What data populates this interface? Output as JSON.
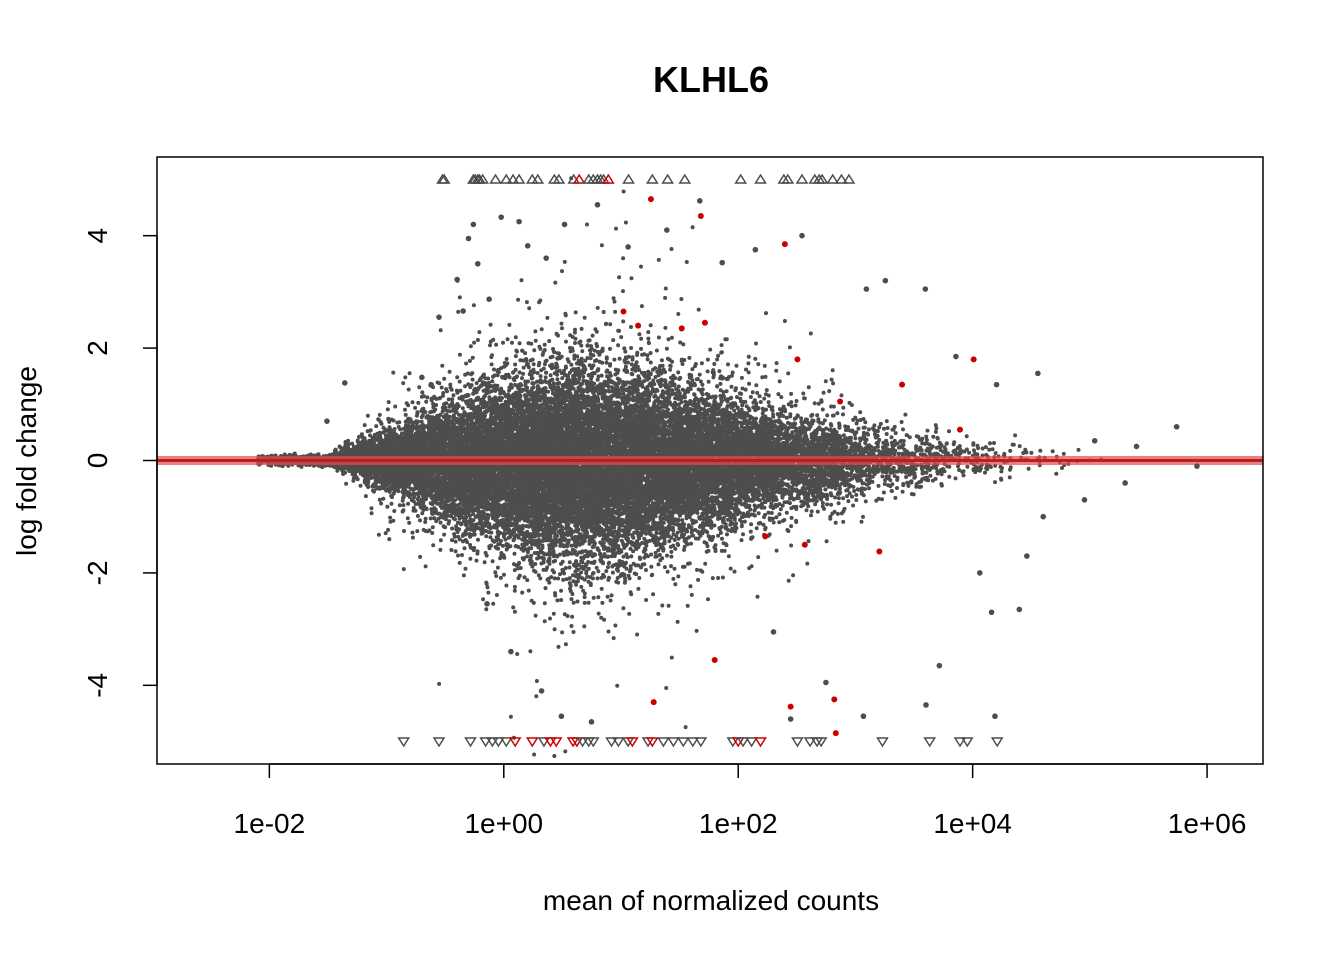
{
  "chart_data": {
    "type": "scatter",
    "title": "KLHL6",
    "xlabel": "mean of normalized counts",
    "ylabel": "log fold change",
    "x_scale": "log10",
    "xlim": [
      0.0011,
      3000000
    ],
    "ylim": [
      -5.4,
      5.4
    ],
    "x_ticks": [
      {
        "value": 0.01,
        "label": "1e-02"
      },
      {
        "value": 1,
        "label": "1e+00"
      },
      {
        "value": 100,
        "label": "1e+02"
      },
      {
        "value": 10000,
        "label": "1e+04"
      },
      {
        "value": 1000000,
        "label": "1e+06"
      }
    ],
    "y_ticks": [
      {
        "value": -4,
        "label": "-4"
      },
      {
        "value": -2,
        "label": "-2"
      },
      {
        "value": 0,
        "label": "0"
      },
      {
        "value": 2,
        "label": "2"
      },
      {
        "value": 4,
        "label": "4"
      }
    ],
    "reference_line": {
      "y": 0
    },
    "colors": {
      "points": "#4d4d4d",
      "significant": "#cc0000",
      "reference_line": "#e8474a",
      "reference_line_core": "#b22222"
    },
    "legend": "none",
    "grid": false,
    "series": [
      {
        "values": [
          {
            "x": 0.031,
            "y": 0.7
          },
          {
            "x": 0.044,
            "y": 1.38
          },
          {
            "x": 0.2,
            "y": 1.48
          },
          {
            "x": 0.24,
            "y": 1.35
          },
          {
            "x": 0.28,
            "y": 2.55
          },
          {
            "x": 0.4,
            "y": 3.22
          },
          {
            "x": 0.45,
            "y": 2.66
          },
          {
            "x": 0.5,
            "y": 3.95
          },
          {
            "x": 0.55,
            "y": 4.2
          },
          {
            "x": 0.6,
            "y": 3.5
          },
          {
            "x": 0.75,
            "y": 2.87
          },
          {
            "x": 0.95,
            "y": 4.33
          },
          {
            "x": 1.35,
            "y": 4.25
          },
          {
            "x": 1.6,
            "y": 3.82
          },
          {
            "x": 2.3,
            "y": 3.6
          },
          {
            "x": 3.3,
            "y": 4.2
          },
          {
            "x": 6.3,
            "y": 4.55
          },
          {
            "x": 11.5,
            "y": 3.8
          },
          {
            "x": 24.6,
            "y": 4.1
          },
          {
            "x": 47,
            "y": 4.62
          },
          {
            "x": 73,
            "y": 3.52
          },
          {
            "x": 140,
            "y": 3.75
          },
          {
            "x": 350,
            "y": 4.0
          },
          {
            "x": 1240,
            "y": 3.05
          },
          {
            "x": 1800,
            "y": 3.2
          },
          {
            "x": 3950,
            "y": 3.05
          },
          {
            "x": 7200,
            "y": 1.85
          },
          {
            "x": 16000,
            "y": 1.35
          },
          {
            "x": 36000,
            "y": 1.55
          },
          {
            "x": 110000,
            "y": 0.35
          },
          {
            "x": 250000,
            "y": 0.25
          },
          {
            "x": 550000,
            "y": 0.6
          },
          {
            "x": 820000,
            "y": -0.1
          },
          {
            "x": 200000,
            "y": -0.4
          },
          {
            "x": 90000,
            "y": -0.7
          },
          {
            "x": 40000,
            "y": -1.0
          },
          {
            "x": 11500,
            "y": -2.0
          },
          {
            "x": 14500,
            "y": -2.7
          },
          {
            "x": 25000,
            "y": -2.65
          },
          {
            "x": 29000,
            "y": -1.7
          },
          {
            "x": 5200,
            "y": -3.65
          },
          {
            "x": 4000,
            "y": -4.35
          },
          {
            "x": 15500,
            "y": -4.55
          },
          {
            "x": 1170,
            "y": -4.55
          },
          {
            "x": 560,
            "y": -3.95
          },
          {
            "x": 280,
            "y": -4.6
          },
          {
            "x": 200,
            "y": -3.05
          },
          {
            "x": 3.1,
            "y": -4.55
          },
          {
            "x": 5.6,
            "y": -4.65
          },
          {
            "x": 2.1,
            "y": -4.1
          },
          {
            "x": 1.15,
            "y": -3.4
          },
          {
            "x": 0.72,
            "y": -2.55
          },
          {
            "x": 0.3,
            "y": -1.0
          }
        ]
      },
      {
        "values": [
          {
            "x": 18,
            "y": 4.65
          },
          {
            "x": 48,
            "y": 4.35
          },
          {
            "x": 250,
            "y": 3.85
          },
          {
            "x": 10.5,
            "y": 2.65
          },
          {
            "x": 14,
            "y": 2.4
          },
          {
            "x": 33,
            "y": 2.35
          },
          {
            "x": 52,
            "y": 2.45
          },
          {
            "x": 320,
            "y": 1.8
          },
          {
            "x": 10200,
            "y": 1.8
          },
          {
            "x": 2500,
            "y": 1.35
          },
          {
            "x": 740,
            "y": 1.05
          },
          {
            "x": 7800,
            "y": 0.55
          },
          {
            "x": 1600,
            "y": -1.62
          },
          {
            "x": 370,
            "y": -1.5
          },
          {
            "x": 170,
            "y": -1.35
          },
          {
            "x": 63,
            "y": -3.55
          },
          {
            "x": 19,
            "y": -4.3
          },
          {
            "x": 280,
            "y": -4.38
          },
          {
            "x": 660,
            "y": -4.25
          },
          {
            "x": 680,
            "y": -4.85
          }
        ]
      }
    ],
    "out_of_range_points": {
      "top": [
        {
          "x": 0.3,
          "sig": false
        },
        {
          "x": 0.31,
          "sig": false
        },
        {
          "x": 0.55,
          "sig": false
        },
        {
          "x": 0.57,
          "sig": false
        },
        {
          "x": 0.6,
          "sig": false
        },
        {
          "x": 0.62,
          "sig": false
        },
        {
          "x": 0.66,
          "sig": false
        },
        {
          "x": 0.85,
          "sig": false
        },
        {
          "x": 1.05,
          "sig": false
        },
        {
          "x": 1.2,
          "sig": false
        },
        {
          "x": 1.35,
          "sig": false
        },
        {
          "x": 1.75,
          "sig": false
        },
        {
          "x": 1.95,
          "sig": false
        },
        {
          "x": 2.7,
          "sig": false
        },
        {
          "x": 2.95,
          "sig": false
        },
        {
          "x": 3.95,
          "sig": false
        },
        {
          "x": 4.4,
          "sig": true
        },
        {
          "x": 5.3,
          "sig": false
        },
        {
          "x": 5.8,
          "sig": false
        },
        {
          "x": 6.3,
          "sig": false
        },
        {
          "x": 6.7,
          "sig": false
        },
        {
          "x": 7.1,
          "sig": false
        },
        {
          "x": 7.8,
          "sig": true
        },
        {
          "x": 11.6,
          "sig": false
        },
        {
          "x": 18.5,
          "sig": false
        },
        {
          "x": 25,
          "sig": false
        },
        {
          "x": 35,
          "sig": false
        },
        {
          "x": 105,
          "sig": false
        },
        {
          "x": 155,
          "sig": false
        },
        {
          "x": 245,
          "sig": false
        },
        {
          "x": 265,
          "sig": false
        },
        {
          "x": 350,
          "sig": false
        },
        {
          "x": 450,
          "sig": false
        },
        {
          "x": 490,
          "sig": false
        },
        {
          "x": 520,
          "sig": false
        },
        {
          "x": 640,
          "sig": false
        },
        {
          "x": 760,
          "sig": false
        },
        {
          "x": 880,
          "sig": false
        }
      ],
      "bottom": [
        {
          "x": 0.14,
          "sig": false
        },
        {
          "x": 0.28,
          "sig": false
        },
        {
          "x": 0.52,
          "sig": false
        },
        {
          "x": 0.7,
          "sig": false
        },
        {
          "x": 0.8,
          "sig": false
        },
        {
          "x": 0.9,
          "sig": false
        },
        {
          "x": 1.05,
          "sig": false
        },
        {
          "x": 1.25,
          "sig": true
        },
        {
          "x": 1.75,
          "sig": true
        },
        {
          "x": 2.2,
          "sig": false
        },
        {
          "x": 2.5,
          "sig": true
        },
        {
          "x": 2.8,
          "sig": true
        },
        {
          "x": 3.9,
          "sig": true
        },
        {
          "x": 4.2,
          "sig": true
        },
        {
          "x": 4.7,
          "sig": false
        },
        {
          "x": 5.3,
          "sig": false
        },
        {
          "x": 5.8,
          "sig": false
        },
        {
          "x": 8.3,
          "sig": false
        },
        {
          "x": 9.5,
          "sig": false
        },
        {
          "x": 11.5,
          "sig": false
        },
        {
          "x": 12.5,
          "sig": true
        },
        {
          "x": 17,
          "sig": false
        },
        {
          "x": 18.5,
          "sig": true
        },
        {
          "x": 23,
          "sig": false
        },
        {
          "x": 28,
          "sig": false
        },
        {
          "x": 34,
          "sig": false
        },
        {
          "x": 41,
          "sig": false
        },
        {
          "x": 48,
          "sig": false
        },
        {
          "x": 90,
          "sig": false
        },
        {
          "x": 100,
          "sig": true
        },
        {
          "x": 110,
          "sig": false
        },
        {
          "x": 130,
          "sig": false
        },
        {
          "x": 155,
          "sig": true
        },
        {
          "x": 320,
          "sig": false
        },
        {
          "x": 410,
          "sig": false
        },
        {
          "x": 470,
          "sig": false
        },
        {
          "x": 510,
          "sig": false
        },
        {
          "x": 1700,
          "sig": false
        },
        {
          "x": 4300,
          "sig": false
        },
        {
          "x": 7800,
          "sig": false
        },
        {
          "x": 9000,
          "sig": false
        },
        {
          "x": 16200,
          "sig": false
        }
      ]
    }
  }
}
